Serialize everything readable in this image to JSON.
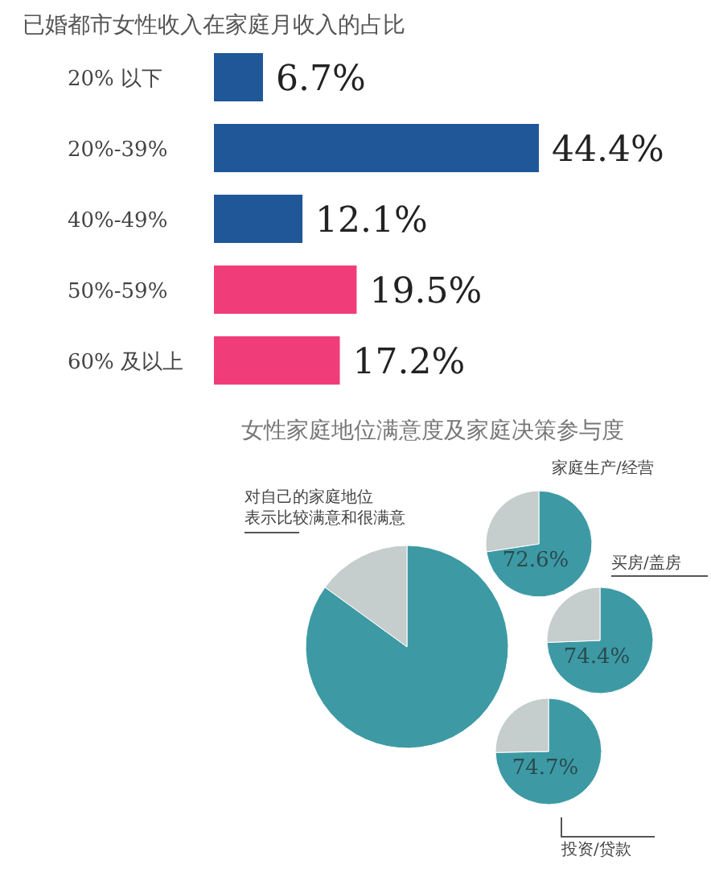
{
  "chart_data": [
    {
      "type": "bar",
      "orientation": "horizontal",
      "title": "已婚都市女性收入在家庭月收入的占比",
      "categories": [
        "20% 以下",
        "20%-39%",
        "40%-49%",
        "50%-59%",
        "60% 及以上"
      ],
      "values": [
        6.7,
        44.4,
        12.1,
        19.5,
        17.2
      ],
      "colors": [
        "#1f5799",
        "#1f5799",
        "#1f5799",
        "#f03d7a",
        "#f03d7a"
      ],
      "value_labels": [
        "6.7%",
        "44.4%",
        "12.1%",
        "19.5%",
        "17.2%"
      ]
    },
    {
      "type": "pie",
      "title": "女性家庭地位满意度及家庭决策参与度",
      "subtitle": "对自己的家庭地位表示比较满意和很满意",
      "categories": [
        null,
        null
      ],
      "values": [
        85,
        15
      ],
      "colors": [
        "#3d9aa4",
        "#c5cdcd"
      ]
    },
    {
      "type": "pie",
      "title": "家庭生产/经营",
      "categories": [
        null,
        null
      ],
      "values": [
        72.6,
        27.4
      ],
      "colors": [
        "#3d9aa4",
        "#c5cdcd"
      ],
      "value_labels": [
        "72.6%",
        null
      ]
    },
    {
      "type": "pie",
      "title": "买房/盖房",
      "categories": [
        null,
        null
      ],
      "values": [
        74.4,
        25.6
      ],
      "colors": [
        "#3d9aa4",
        "#c5cdcd"
      ],
      "value_labels": [
        "74.4%",
        null
      ]
    },
    {
      "type": "pie",
      "title": "投资/贷款",
      "categories": [
        null,
        null
      ],
      "values": [
        74.7,
        25.3
      ],
      "colors": [
        "#3d9aa4",
        "#c5cdcd"
      ],
      "value_labels": [
        "74.7%",
        null
      ]
    }
  ]
}
